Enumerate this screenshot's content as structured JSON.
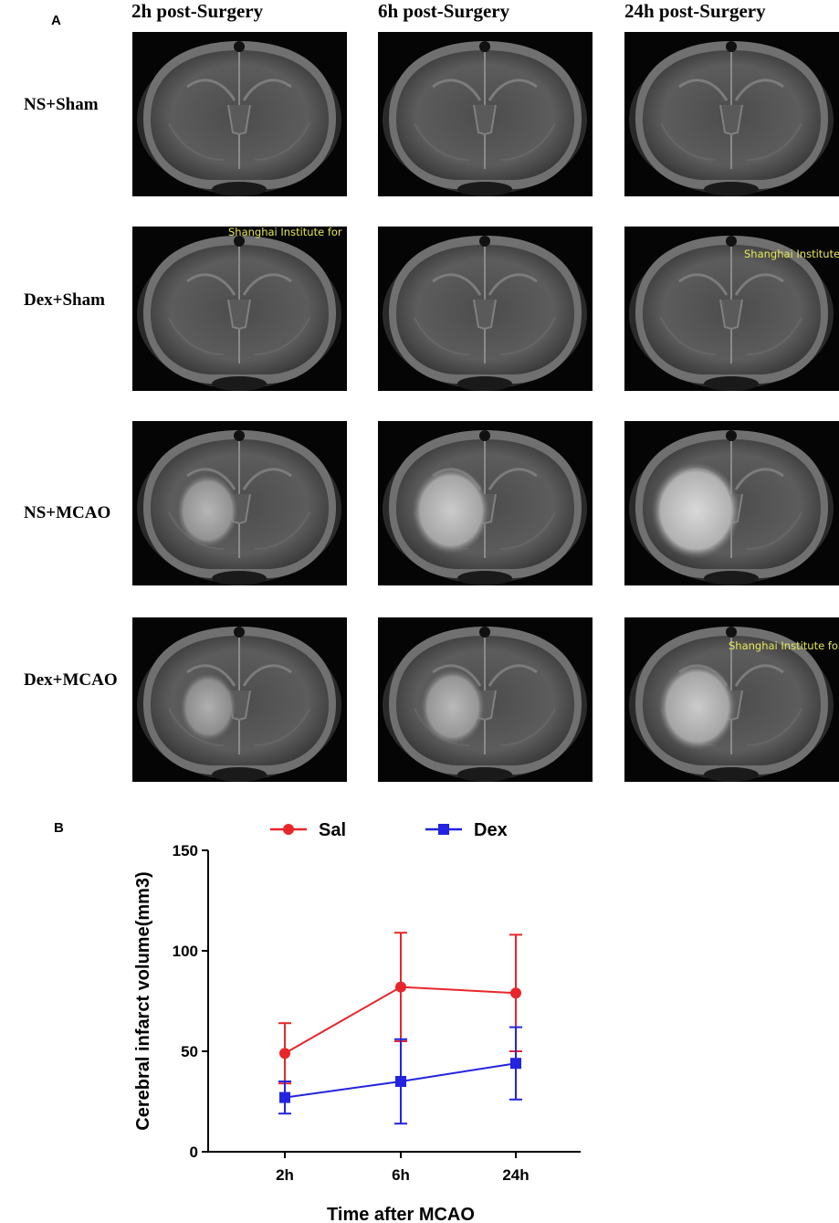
{
  "panel_a": {
    "letter": "A",
    "columns": [
      "2h post-Surgery",
      "6h post-Surgery",
      "24h post-Surgery"
    ],
    "rows": [
      "NS+Sham",
      "Dex+Sham",
      "NS+MCAO",
      "Dex+MCAO"
    ],
    "watermarks": {
      "r1c0": "Shanghai Institute for",
      "r1c2": "Shanghai Institute",
      "r3c2": "Shanghai Institute for"
    },
    "lesion_level": [
      [
        0,
        0,
        0
      ],
      [
        0,
        0,
        0
      ],
      [
        0.45,
        0.75,
        0.95
      ],
      [
        0.35,
        0.5,
        0.75
      ]
    ]
  },
  "panel_b": {
    "letter": "B"
  },
  "colors": {
    "sal": "#e8262a",
    "dex": "#2323e0"
  },
  "chart_data": {
    "type": "line",
    "categories": [
      "2h",
      "6h",
      "24h"
    ],
    "xlabel": "Time after MCAO",
    "ylabel": "Cerebral infarct volume(mm3)",
    "ylim": [
      0,
      150
    ],
    "yticks": [
      "0",
      "50",
      "100",
      "150"
    ],
    "legend_position": "top",
    "series": [
      {
        "name": "Sal",
        "marker": "circle",
        "values": [
          49,
          82,
          79
        ],
        "err": [
          15,
          27,
          29
        ]
      },
      {
        "name": "Dex",
        "marker": "square",
        "values": [
          27,
          35,
          44
        ],
        "err": [
          8,
          21,
          18
        ]
      }
    ]
  }
}
